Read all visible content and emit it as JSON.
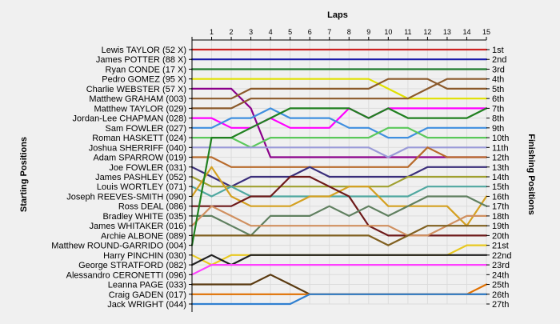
{
  "chart_data": {
    "type": "line",
    "title": "",
    "xlabel": "Laps",
    "ylabel_left": "Starting Positions",
    "ylabel_right": "Finishing Positions",
    "x": [
      0,
      1,
      2,
      3,
      4,
      5,
      6,
      7,
      8,
      9,
      10,
      11,
      12,
      13,
      14,
      15
    ],
    "x_tick_labels": [
      "1",
      "2",
      "3",
      "4",
      "5",
      "6",
      "7",
      "8",
      "9",
      "10",
      "11",
      "12",
      "13",
      "14",
      "15"
    ],
    "xlim": [
      0,
      15
    ],
    "ylim": [
      1,
      27
    ],
    "y_inverted": true,
    "grid": true,
    "finishing_labels": [
      "1st",
      "2nd",
      "3rd",
      "4th",
      "5th",
      "6th",
      "7th",
      "8th",
      "9th",
      "10th",
      "11th",
      "12th",
      "13th",
      "14th",
      "15th",
      "16th",
      "17th",
      "18th",
      "19th",
      "20th",
      "21st",
      "22nd",
      "23rd",
      "24th",
      "25th",
      "26th",
      "27th"
    ],
    "series": [
      {
        "name": "Lewis TAYLOR (52 X)",
        "color": "#cc2222",
        "values": [
          1,
          1,
          1,
          1,
          1,
          1,
          1,
          1,
          1,
          1,
          1,
          1,
          1,
          1,
          1,
          1
        ]
      },
      {
        "name": "James POTTER (88 X)",
        "color": "#1a1aaa",
        "values": [
          2,
          2,
          2,
          2,
          2,
          2,
          2,
          2,
          2,
          2,
          2,
          2,
          2,
          2,
          2,
          2
        ]
      },
      {
        "name": "Ryan CONDE (17 X)",
        "color": "#1f7a2e",
        "values": [
          3,
          3,
          3,
          3,
          3,
          3,
          3,
          3,
          3,
          3,
          3,
          3,
          3,
          3,
          3,
          3
        ]
      },
      {
        "name": "Pedro GOMEZ (95 X)",
        "color": "#e0e000",
        "values": [
          4,
          4,
          4,
          4,
          4,
          4,
          4,
          4,
          4,
          4,
          5,
          6,
          6,
          6,
          6,
          6
        ]
      },
      {
        "name": "Charlie WEBSTER (57 X)",
        "color": "#8b008b",
        "values": [
          5,
          5,
          5,
          7,
          12,
          12,
          12,
          12,
          12,
          12,
          12,
          12,
          12,
          12,
          12,
          12
        ]
      },
      {
        "name": "Matthew GRAHAM (003)",
        "color": "#8b5a2b",
        "values": [
          6,
          6,
          6,
          5,
          5,
          5,
          5,
          5,
          5,
          5,
          4,
          4,
          4,
          5,
          5,
          5
        ]
      },
      {
        "name": "Matthew TAYLOR (029)",
        "color": "#8b5a2b",
        "values": [
          7,
          7,
          7,
          6,
          6,
          6,
          6,
          6,
          6,
          6,
          6,
          6,
          5,
          4,
          4,
          4
        ]
      },
      {
        "name": "Jordan-Lee CHAPMAN (028)",
        "color": "#ff00ff",
        "values": [
          8,
          8,
          9,
          9,
          8,
          9,
          9,
          9,
          7,
          8,
          7,
          7,
          7,
          7,
          7,
          7
        ]
      },
      {
        "name": "Sam FOWLER (027)",
        "color": "#3f8fdf",
        "values": [
          9,
          9,
          8,
          8,
          7,
          8,
          8,
          8,
          9,
          9,
          10,
          10,
          9,
          9,
          9,
          9
        ]
      },
      {
        "name": "Roman HASKETT (024)",
        "color": "#5ac85a",
        "values": [
          10,
          10,
          10,
          11,
          10,
          10,
          10,
          10,
          10,
          10,
          9,
          9,
          10,
          10,
          10,
          10
        ]
      },
      {
        "name": "Joshua SHERRIFF (040)",
        "color": "#9a9ad8",
        "values": [
          11,
          11,
          11,
          11,
          11,
          11,
          11,
          11,
          11,
          11,
          12,
          11,
          11,
          11,
          11,
          11
        ]
      },
      {
        "name": "Adam SPARROW (019)",
        "color": "#b86b2c",
        "values": [
          12,
          12,
          13,
          13,
          13,
          13,
          13,
          13,
          13,
          13,
          13,
          13,
          11,
          12,
          12,
          12
        ]
      },
      {
        "name": "Joe FOWLER (031)",
        "color": "#3a2e7a",
        "values": [
          13,
          14,
          15,
          14,
          14,
          14,
          13,
          14,
          14,
          14,
          14,
          14,
          13,
          13,
          13,
          13
        ]
      },
      {
        "name": "James PASHLEY (052)",
        "color": "#a0a030",
        "values": [
          14,
          15,
          15,
          15,
          15,
          15,
          15,
          15,
          15,
          15,
          15,
          14,
          14,
          14,
          14,
          14
        ]
      },
      {
        "name": "Louis WORTLEY (071)",
        "color": "#50a8a0",
        "values": [
          15,
          16,
          15,
          16,
          16,
          16,
          16,
          16,
          16,
          16,
          16,
          16,
          15,
          15,
          15,
          15
        ]
      },
      {
        "name": "Joseph REEVES-SMITH (090)",
        "color": "#d4a020",
        "values": [
          16,
          13,
          16,
          17,
          17,
          17,
          16,
          16,
          15,
          15,
          17,
          17,
          17,
          17,
          19,
          16
        ]
      },
      {
        "name": "Ross DEAL (086)",
        "color": "#6e1a1a",
        "values": [
          17,
          17,
          17,
          16,
          16,
          14,
          14,
          15,
          16,
          19,
          20,
          20,
          20,
          20,
          20,
          20
        ]
      },
      {
        "name": "Bradley WHITE (035)",
        "color": "#608060",
        "values": [
          18,
          18,
          19,
          20,
          18,
          18,
          18,
          17,
          18,
          17,
          18,
          17,
          16,
          16,
          16,
          17
        ]
      },
      {
        "name": "James WHITAKER (016)",
        "color": "#d09060",
        "values": [
          19,
          17,
          18,
          19,
          19,
          19,
          19,
          19,
          19,
          19,
          19,
          20,
          20,
          19,
          18,
          18
        ]
      },
      {
        "name": "Archie ALBONE (089)",
        "color": "#806020",
        "values": [
          20,
          20,
          20,
          20,
          20,
          20,
          20,
          20,
          20,
          20,
          21,
          20,
          19,
          19,
          19,
          19
        ]
      },
      {
        "name": "Matthew ROUND-GARRIDO (004)",
        "color": "#208020",
        "values": [
          21,
          10,
          10,
          9,
          8,
          7,
          7,
          7,
          7,
          8,
          7,
          8,
          8,
          8,
          8,
          7
        ]
      },
      {
        "name": "Harry PINCHIN (030)",
        "color": "#e8c820",
        "values": [
          22,
          23,
          22,
          22,
          22,
          22,
          22,
          22,
          22,
          22,
          22,
          22,
          22,
          22,
          21,
          21
        ]
      },
      {
        "name": "George STRATFORD (082)",
        "color": "#202020",
        "values": [
          23,
          22,
          23,
          22,
          22,
          22,
          22,
          22,
          22,
          22,
          22,
          22,
          22,
          22,
          22,
          22
        ]
      },
      {
        "name": "Alessandro CERONETTI (096)",
        "color": "#ff40ff",
        "values": [
          24,
          23,
          23,
          23,
          23,
          23,
          23,
          23,
          23,
          23,
          23,
          23,
          23,
          23,
          23,
          23
        ]
      },
      {
        "name": "Leanna PAGE (033)",
        "color": "#5a3a10",
        "values": [
          25,
          25,
          25,
          25,
          24,
          25,
          26,
          26,
          26,
          26,
          26,
          26,
          26,
          26,
          26,
          26
        ]
      },
      {
        "name": "Craig GADEN (017)",
        "color": "#e07000",
        "values": [
          26,
          26,
          26,
          26,
          26,
          26,
          26,
          26,
          26,
          26,
          26,
          26,
          26,
          26,
          26,
          25
        ]
      },
      {
        "name": "Jack WRIGHT (044)",
        "color": "#3080d0",
        "values": [
          27,
          27,
          27,
          27,
          27,
          27,
          26,
          26,
          26,
          26,
          26,
          26,
          26,
          26,
          26,
          26
        ]
      }
    ]
  }
}
